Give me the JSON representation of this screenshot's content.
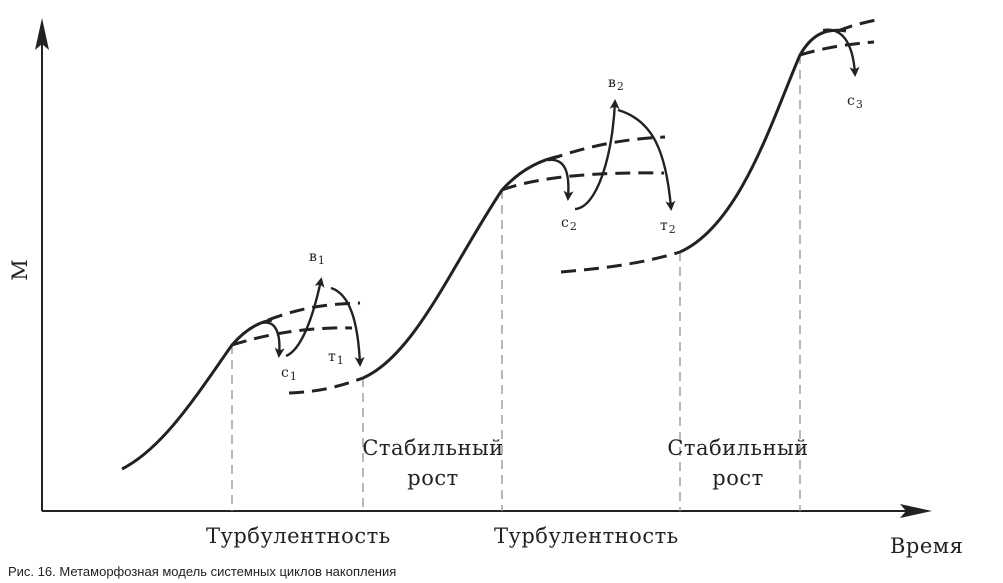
{
  "axes": {
    "y_label": "М",
    "x_label": "Время"
  },
  "phases": {
    "turbulence_1": "Турбулентность",
    "turbulence_2": "Турбулентность",
    "stable_1_line1": "Стабильный",
    "stable_1_line2": "рост",
    "stable_2_line1": "Стабильный",
    "stable_2_line2": "рост"
  },
  "points": {
    "b1": {
      "letter": "в",
      "index": "1"
    },
    "c1": {
      "letter": "с",
      "index": "1"
    },
    "t1": {
      "letter": "т",
      "index": "1"
    },
    "b2": {
      "letter": "в",
      "index": "2"
    },
    "c2": {
      "letter": "с",
      "index": "2"
    },
    "t2": {
      "letter": "т",
      "index": "2"
    },
    "c3": {
      "letter": "с",
      "index": "3"
    }
  },
  "caption": "Рис. 16. Метаморфозная модель системных циклов накопления",
  "colors": {
    "ink": "#222222",
    "guide": "#9a9a9a"
  }
}
